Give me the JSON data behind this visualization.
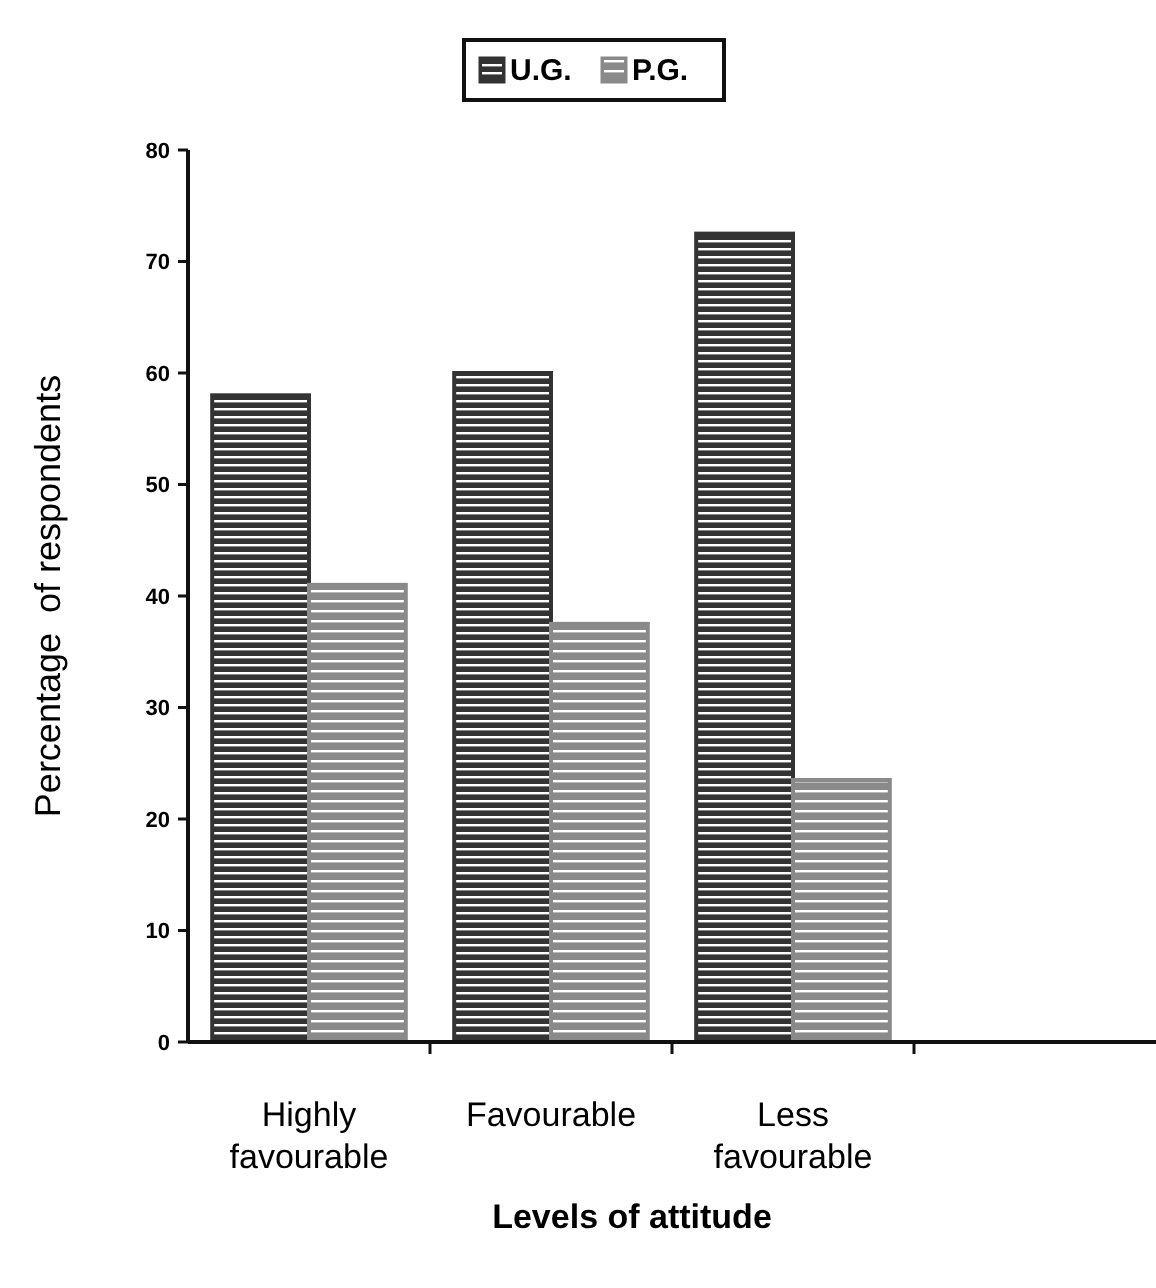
{
  "chart_data": {
    "type": "bar",
    "xlabel": "Levels of attitude",
    "ylabel": "Percentage  of respondents",
    "categories": [
      "Highly favourable",
      "Favourable",
      "Less favourable",
      null
    ],
    "series": [
      {
        "name": "U.G.",
        "color": "#333333",
        "values": [
          58,
          60,
          72.5,
          null
        ]
      },
      {
        "name": "P.G.",
        "color": "#8a8a8a",
        "values": [
          41,
          37.5,
          23.5,
          null
        ]
      }
    ],
    "ylim": [
      0,
      80
    ],
    "yticks": [
      0,
      10,
      20,
      30,
      40,
      50,
      60,
      70,
      80
    ],
    "legend": "top",
    "grid": false
  }
}
